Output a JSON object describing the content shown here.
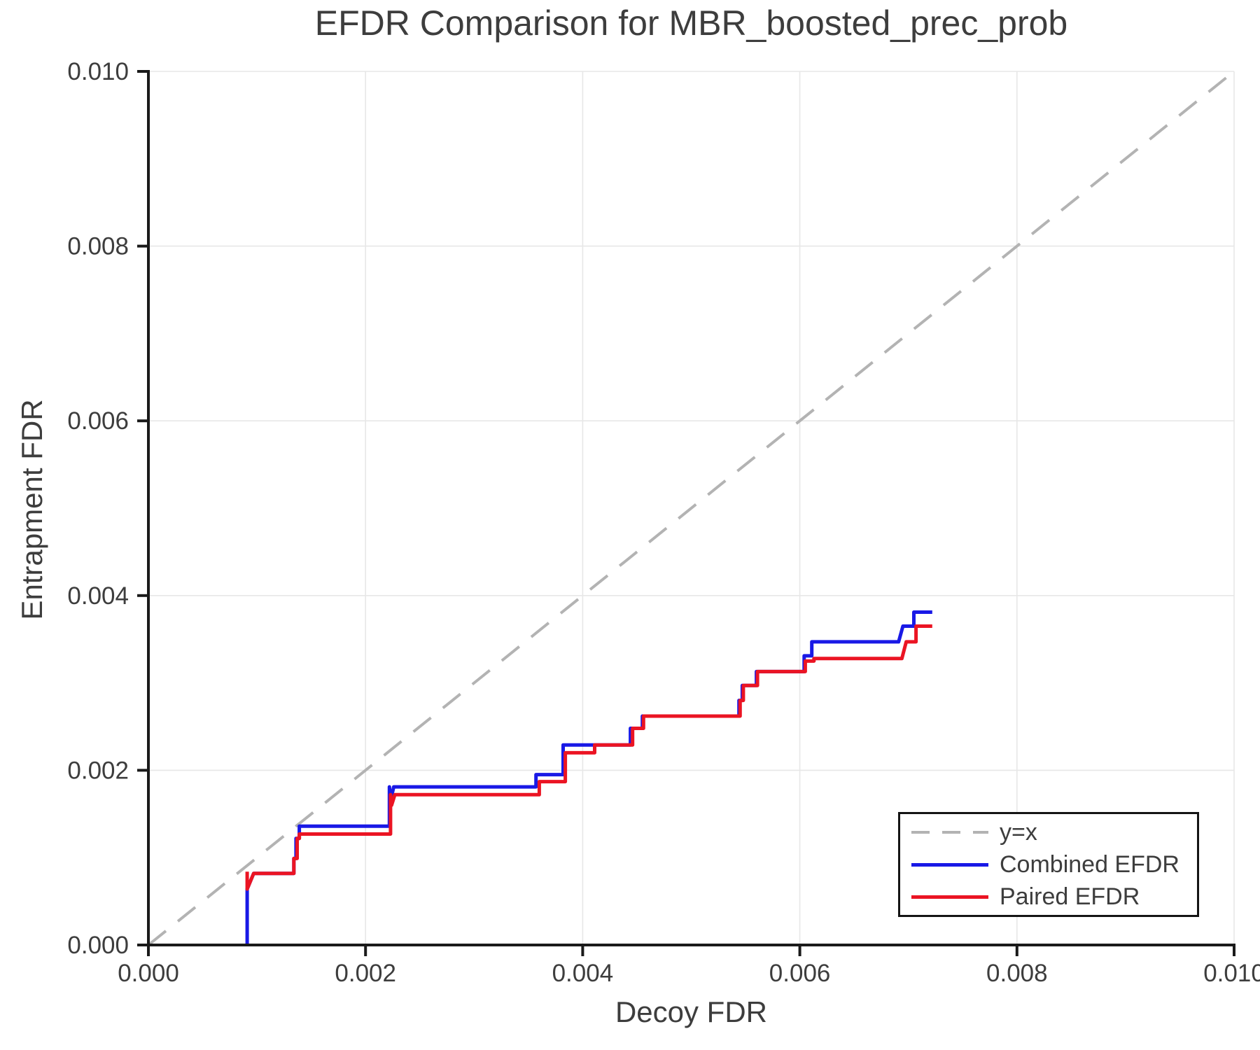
{
  "title": "EFDR Comparison for MBR_boosted_prec_prob",
  "colors": {
    "text": "#3d3d3d",
    "spine": "#1a1a1a",
    "grid": "#e7e7e7",
    "identity_line": "#b3b3b3",
    "combined_efdr": "#1919e6",
    "paired_efdr": "#eb1423",
    "legend_border": "#141414",
    "background": "#ffffff"
  },
  "legend": {
    "entries": [
      {
        "label": "y=x",
        "sample": "dashed-gray-line"
      },
      {
        "label": "Combined EFDR",
        "sample": "solid-blue-line"
      },
      {
        "label": "Paired EFDR",
        "sample": "solid-red-line"
      }
    ]
  },
  "chart_data": {
    "type": "line",
    "title": "EFDR Comparison for MBR_boosted_prec_prob",
    "xlabel": "Decoy FDR",
    "ylabel": "Entrapment FDR",
    "xlim": [
      0.0,
      0.01
    ],
    "ylim": [
      0.0,
      0.01
    ],
    "x_ticks": [
      0.0,
      0.002,
      0.004,
      0.006,
      0.008,
      0.01
    ],
    "x_tick_labels": [
      "0.000",
      "0.002",
      "0.004",
      "0.006",
      "0.008",
      "0.010"
    ],
    "y_ticks": [
      0.0,
      0.002,
      0.004,
      0.006,
      0.008,
      0.01
    ],
    "y_tick_labels": [
      "0.000",
      "0.002",
      "0.004",
      "0.006",
      "0.008",
      "0.010"
    ],
    "grid": true,
    "legend_position": "lower right",
    "series": [
      {
        "name": "y=x",
        "style": "dashed",
        "color": "#b3b3b3",
        "points": [
          [
            0.0,
            0.0
          ],
          [
            0.01,
            0.01
          ]
        ]
      },
      {
        "name": "Combined EFDR",
        "style": "solid",
        "color": "#1919e6",
        "points": [
          [
            0.00091,
            0.0
          ],
          [
            0.00091,
            0.00064
          ],
          [
            0.00097,
            0.00082
          ],
          [
            0.00134,
            0.00082
          ],
          [
            0.00134,
            0.00099
          ],
          [
            0.00136,
            0.00099
          ],
          [
            0.00136,
            0.00122
          ],
          [
            0.00139,
            0.00122
          ],
          [
            0.00139,
            0.00136
          ],
          [
            0.00222,
            0.00136
          ],
          [
            0.00222,
            0.00181
          ],
          [
            0.00223,
            0.00165
          ],
          [
            0.00226,
            0.00181
          ],
          [
            0.00357,
            0.00181
          ],
          [
            0.00357,
            0.00195
          ],
          [
            0.00382,
            0.00195
          ],
          [
            0.00382,
            0.00229
          ],
          [
            0.00444,
            0.00229
          ],
          [
            0.00444,
            0.00248
          ],
          [
            0.00455,
            0.00248
          ],
          [
            0.00455,
            0.00262
          ],
          [
            0.00544,
            0.00262
          ],
          [
            0.00544,
            0.0028
          ],
          [
            0.00547,
            0.0028
          ],
          [
            0.00547,
            0.00297
          ],
          [
            0.0056,
            0.00297
          ],
          [
            0.0056,
            0.00313
          ],
          [
            0.00604,
            0.00313
          ],
          [
            0.00604,
            0.00331
          ],
          [
            0.00611,
            0.00331
          ],
          [
            0.00611,
            0.00347
          ],
          [
            0.00691,
            0.00347
          ],
          [
            0.00695,
            0.00365
          ],
          [
            0.00705,
            0.00365
          ],
          [
            0.00705,
            0.00381
          ],
          [
            0.00722,
            0.00381
          ]
        ]
      },
      {
        "name": "Paired EFDR",
        "style": "solid",
        "color": "#eb1423",
        "points": [
          [
            0.00091,
            0.00084
          ],
          [
            0.00091,
            0.00064
          ],
          [
            0.00097,
            0.00082
          ],
          [
            0.00134,
            0.00082
          ],
          [
            0.00134,
            0.00099
          ],
          [
            0.00137,
            0.00099
          ],
          [
            0.00137,
            0.00122
          ],
          [
            0.00139,
            0.00122
          ],
          [
            0.00139,
            0.00127
          ],
          [
            0.00223,
            0.00127
          ],
          [
            0.00223,
            0.00172
          ],
          [
            0.00224,
            0.0016
          ],
          [
            0.00227,
            0.00172
          ],
          [
            0.0036,
            0.00172
          ],
          [
            0.0036,
            0.00187
          ],
          [
            0.00384,
            0.00187
          ],
          [
            0.00384,
            0.0022
          ],
          [
            0.00411,
            0.0022
          ],
          [
            0.00411,
            0.00229
          ],
          [
            0.00446,
            0.00229
          ],
          [
            0.00446,
            0.00248
          ],
          [
            0.00456,
            0.00248
          ],
          [
            0.00456,
            0.00262
          ],
          [
            0.00545,
            0.00262
          ],
          [
            0.00545,
            0.0028
          ],
          [
            0.00548,
            0.0028
          ],
          [
            0.00548,
            0.00297
          ],
          [
            0.00561,
            0.00297
          ],
          [
            0.00561,
            0.00313
          ],
          [
            0.00605,
            0.00313
          ],
          [
            0.00605,
            0.00325
          ],
          [
            0.00613,
            0.00325
          ],
          [
            0.00613,
            0.00328
          ],
          [
            0.00694,
            0.00328
          ],
          [
            0.00698,
            0.00347
          ],
          [
            0.00707,
            0.00347
          ],
          [
            0.00707,
            0.00365
          ],
          [
            0.00722,
            0.00365
          ]
        ]
      }
    ]
  }
}
